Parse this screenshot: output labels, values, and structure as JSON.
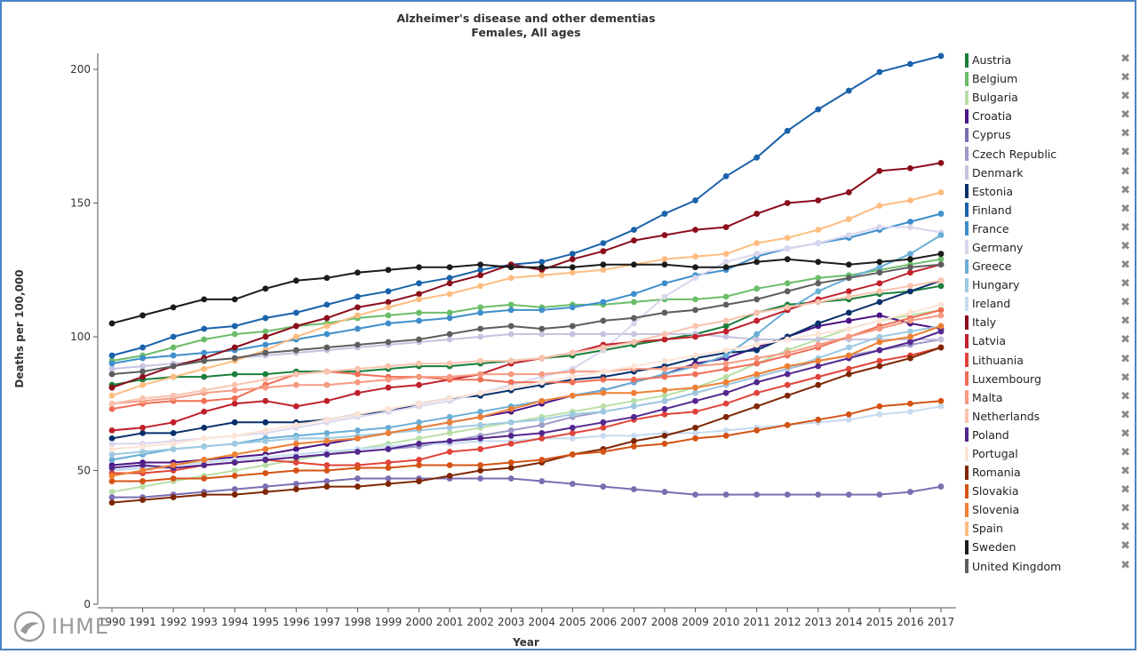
{
  "chart_data": {
    "type": "line",
    "title": "Alzheimer's disease and other dementias",
    "subtitle": "Females, All ages",
    "xlabel": "Year",
    "ylabel": "Deaths per 100,000",
    "ylim": [
      0,
      205
    ],
    "yticks": [
      0,
      50,
      100,
      150,
      200
    ],
    "x": [
      1990,
      1991,
      1992,
      1993,
      1994,
      1995,
      1996,
      1997,
      1998,
      1999,
      2000,
      2001,
      2002,
      2003,
      2004,
      2005,
      2006,
      2007,
      2008,
      2009,
      2010,
      2011,
      2012,
      2013,
      2014,
      2015,
      2016,
      2017
    ],
    "grid": false,
    "legend_position": "right",
    "series": [
      {
        "name": "Austria",
        "color": "#1a7f3c",
        "values": [
          82,
          84,
          85,
          85,
          86,
          86,
          87,
          87,
          87,
          88,
          89,
          89,
          90,
          91,
          92,
          93,
          95,
          97,
          99,
          101,
          104,
          109,
          112,
          113,
          114,
          116,
          117,
          119
        ]
      },
      {
        "name": "Belgium",
        "color": "#6cbd6a",
        "values": [
          91,
          93,
          96,
          99,
          101,
          102,
          104,
          105,
          107,
          108,
          109,
          109,
          111,
          112,
          111,
          112,
          112,
          113,
          114,
          114,
          115,
          118,
          120,
          122,
          123,
          125,
          127,
          129
        ]
      },
      {
        "name": "Bulgaria",
        "color": "#b9dfa7",
        "values": [
          42,
          44,
          46,
          48,
          50,
          52,
          54,
          56,
          58,
          60,
          62,
          64,
          66,
          68,
          70,
          72,
          74,
          76,
          78,
          81,
          85,
          90,
          95,
          99,
          103,
          106,
          108,
          110
        ]
      },
      {
        "name": "Croatia",
        "color": "#4a1486",
        "values": [
          52,
          53,
          53,
          54,
          55,
          56,
          58,
          60,
          62,
          64,
          66,
          68,
          70,
          72,
          75,
          78,
          80,
          83,
          86,
          90,
          92,
          96,
          100,
          104,
          106,
          108,
          105,
          103
        ]
      },
      {
        "name": "Cyprus",
        "color": "#7c6db1",
        "values": [
          40,
          40,
          41,
          42,
          43,
          44,
          45,
          46,
          47,
          47,
          47,
          47,
          47,
          47,
          46,
          45,
          44,
          43,
          42,
          41,
          41,
          41,
          41,
          41,
          41,
          41,
          42,
          44
        ]
      },
      {
        "name": "Czech Republic",
        "color": "#9e9ac8",
        "values": [
          50,
          51,
          51,
          52,
          53,
          54,
          55,
          56,
          57,
          58,
          59,
          61,
          63,
          65,
          67,
          70,
          72,
          74,
          76,
          79,
          82,
          85,
          88,
          91,
          93,
          95,
          97,
          99
        ]
      },
      {
        "name": "Denmark",
        "color": "#c4c3e0",
        "values": [
          88,
          89,
          90,
          91,
          92,
          93,
          94,
          95,
          96,
          97,
          98,
          99,
          100,
          101,
          101,
          101,
          101,
          101,
          101,
          101,
          100,
          99,
          99,
          99,
          99,
          99,
          99,
          99
        ]
      },
      {
        "name": "Estonia",
        "color": "#08306b",
        "values": [
          62,
          64,
          64,
          66,
          68,
          68,
          68,
          69,
          71,
          72,
          75,
          77,
          78,
          80,
          82,
          84,
          85,
          87,
          89,
          92,
          94,
          95,
          100,
          105,
          109,
          113,
          117,
          121
        ]
      },
      {
        "name": "Finland",
        "color": "#1a62aa",
        "values": [
          93,
          96,
          100,
          103,
          104,
          107,
          109,
          112,
          115,
          117,
          120,
          122,
          125,
          127,
          128,
          131,
          135,
          140,
          146,
          151,
          160,
          167,
          177,
          185,
          192,
          199,
          202,
          205
        ]
      },
      {
        "name": "France",
        "color": "#3e8fcb",
        "values": [
          90,
          92,
          93,
          94,
          95,
          97,
          99,
          101,
          103,
          105,
          106,
          107,
          109,
          110,
          110,
          111,
          113,
          116,
          120,
          123,
          125,
          130,
          133,
          135,
          137,
          140,
          143,
          146
        ]
      },
      {
        "name": "Germany",
        "color": "#d9d6ee",
        "values": [
          60,
          60,
          61,
          62,
          63,
          64,
          66,
          68,
          70,
          72,
          74,
          76,
          79,
          82,
          85,
          88,
          95,
          105,
          115,
          122,
          128,
          131,
          133,
          135,
          138,
          141,
          141,
          139
        ]
      },
      {
        "name": "Greece",
        "color": "#6aaed6",
        "values": [
          54,
          56,
          58,
          59,
          60,
          62,
          63,
          64,
          65,
          66,
          68,
          70,
          72,
          74,
          76,
          78,
          80,
          83,
          86,
          89,
          93,
          101,
          110,
          117,
          122,
          126,
          131,
          138
        ]
      },
      {
        "name": "Hungary",
        "color": "#9ecae1",
        "values": [
          56,
          57,
          58,
          59,
          60,
          61,
          62,
          62,
          63,
          64,
          65,
          66,
          67,
          68,
          69,
          71,
          72,
          74,
          76,
          79,
          82,
          85,
          88,
          92,
          96,
          100,
          102,
          104
        ]
      },
      {
        "name": "Ireland",
        "color": "#c6dbef",
        "values": [
          50,
          51,
          52,
          53,
          54,
          55,
          56,
          57,
          58,
          59,
          60,
          60,
          61,
          61,
          62,
          62,
          63,
          63,
          64,
          64,
          65,
          66,
          67,
          68,
          69,
          71,
          72,
          74
        ]
      },
      {
        "name": "Italy",
        "color": "#8b0d1c",
        "values": [
          81,
          85,
          89,
          92,
          96,
          100,
          104,
          107,
          111,
          113,
          116,
          120,
          123,
          127,
          125,
          129,
          132,
          136,
          138,
          140,
          141,
          146,
          150,
          151,
          154,
          162,
          163,
          165
        ]
      },
      {
        "name": "Latvia",
        "color": "#c0202c",
        "values": [
          65,
          66,
          68,
          72,
          75,
          76,
          74,
          76,
          79,
          81,
          82,
          84,
          86,
          90,
          92,
          94,
          97,
          98,
          99,
          100,
          102,
          106,
          110,
          114,
          117,
          120,
          124,
          127
        ]
      },
      {
        "name": "Lithuania",
        "color": "#e0443a",
        "values": [
          49,
          49,
          50,
          52,
          53,
          54,
          53,
          52,
          52,
          53,
          54,
          57,
          58,
          60,
          62,
          64,
          66,
          69,
          71,
          72,
          75,
          79,
          82,
          85,
          88,
          91,
          93,
          96
        ]
      },
      {
        "name": "Luxembourg",
        "color": "#ef6e55",
        "values": [
          73,
          75,
          76,
          76,
          77,
          82,
          86,
          87,
          86,
          85,
          85,
          84,
          84,
          83,
          83,
          83,
          84,
          84,
          85,
          86,
          88,
          90,
          93,
          96,
          100,
          104,
          107,
          110
        ]
      },
      {
        "name": "Malta",
        "color": "#f69a82",
        "values": [
          75,
          76,
          77,
          79,
          80,
          81,
          82,
          82,
          83,
          84,
          85,
          85,
          86,
          86,
          86,
          87,
          87,
          88,
          88,
          89,
          90,
          92,
          94,
          97,
          100,
          103,
          106,
          108
        ]
      },
      {
        "name": "Netherlands",
        "color": "#f9c3ae",
        "values": [
          75,
          77,
          78,
          80,
          82,
          84,
          86,
          87,
          88,
          89,
          90,
          90,
          91,
          91,
          92,
          94,
          96,
          98,
          101,
          104,
          106,
          109,
          111,
          113,
          115,
          117,
          119,
          121
        ]
      },
      {
        "name": "Poland",
        "color": "#54278f",
        "values": [
          51,
          52,
          51,
          52,
          53,
          54,
          55,
          56,
          57,
          58,
          60,
          61,
          62,
          63,
          64,
          66,
          68,
          70,
          73,
          76,
          79,
          83,
          86,
          89,
          92,
          95,
          98,
          102
        ]
      },
      {
        "name": "Portugal",
        "color": "#fde4d6",
        "values": [
          58,
          59,
          60,
          62,
          63,
          65,
          67,
          69,
          71,
          73,
          75,
          77,
          79,
          81,
          83,
          85,
          87,
          89,
          91,
          93,
          95,
          97,
          99,
          101,
          103,
          106,
          109,
          112
        ]
      },
      {
        "name": "Romania",
        "color": "#7f2704",
        "values": [
          38,
          39,
          40,
          41,
          41,
          42,
          43,
          44,
          44,
          45,
          46,
          48,
          50,
          51,
          53,
          56,
          58,
          61,
          63,
          66,
          70,
          74,
          78,
          82,
          86,
          89,
          92,
          96
        ]
      },
      {
        "name": "Slovakia",
        "color": "#d45314",
        "values": [
          46,
          46,
          47,
          47,
          48,
          49,
          50,
          50,
          51,
          51,
          52,
          52,
          52,
          53,
          54,
          56,
          57,
          59,
          60,
          62,
          63,
          65,
          67,
          69,
          71,
          74,
          75,
          76
        ]
      },
      {
        "name": "Slovenia",
        "color": "#ee8033",
        "values": [
          48,
          50,
          52,
          54,
          56,
          58,
          60,
          61,
          62,
          64,
          66,
          68,
          70,
          73,
          76,
          78,
          79,
          79,
          80,
          81,
          83,
          86,
          89,
          91,
          93,
          98,
          100,
          104
        ]
      },
      {
        "name": "Spain",
        "color": "#fdbd80",
        "values": [
          78,
          82,
          85,
          88,
          91,
          95,
          100,
          104,
          108,
          111,
          114,
          116,
          119,
          122,
          123,
          124,
          125,
          127,
          129,
          130,
          131,
          135,
          137,
          140,
          144,
          149,
          151,
          154
        ]
      },
      {
        "name": "Sweden",
        "color": "#1b1b1b",
        "values": [
          105,
          108,
          111,
          114,
          114,
          118,
          121,
          122,
          124,
          125,
          126,
          126,
          127,
          126,
          126,
          126,
          127,
          127,
          127,
          126,
          126,
          128,
          129,
          128,
          127,
          128,
          129,
          131
        ]
      },
      {
        "name": "United Kingdom",
        "color": "#5e5e5e",
        "values": [
          86,
          87,
          89,
          91,
          92,
          94,
          95,
          96,
          97,
          98,
          99,
          101,
          103,
          104,
          103,
          104,
          106,
          107,
          109,
          110,
          112,
          114,
          117,
          120,
          122,
          124,
          126,
          127
        ]
      }
    ]
  },
  "branding": {
    "logo_text": "IHME"
  },
  "legend": {
    "close_glyph": "✖"
  }
}
